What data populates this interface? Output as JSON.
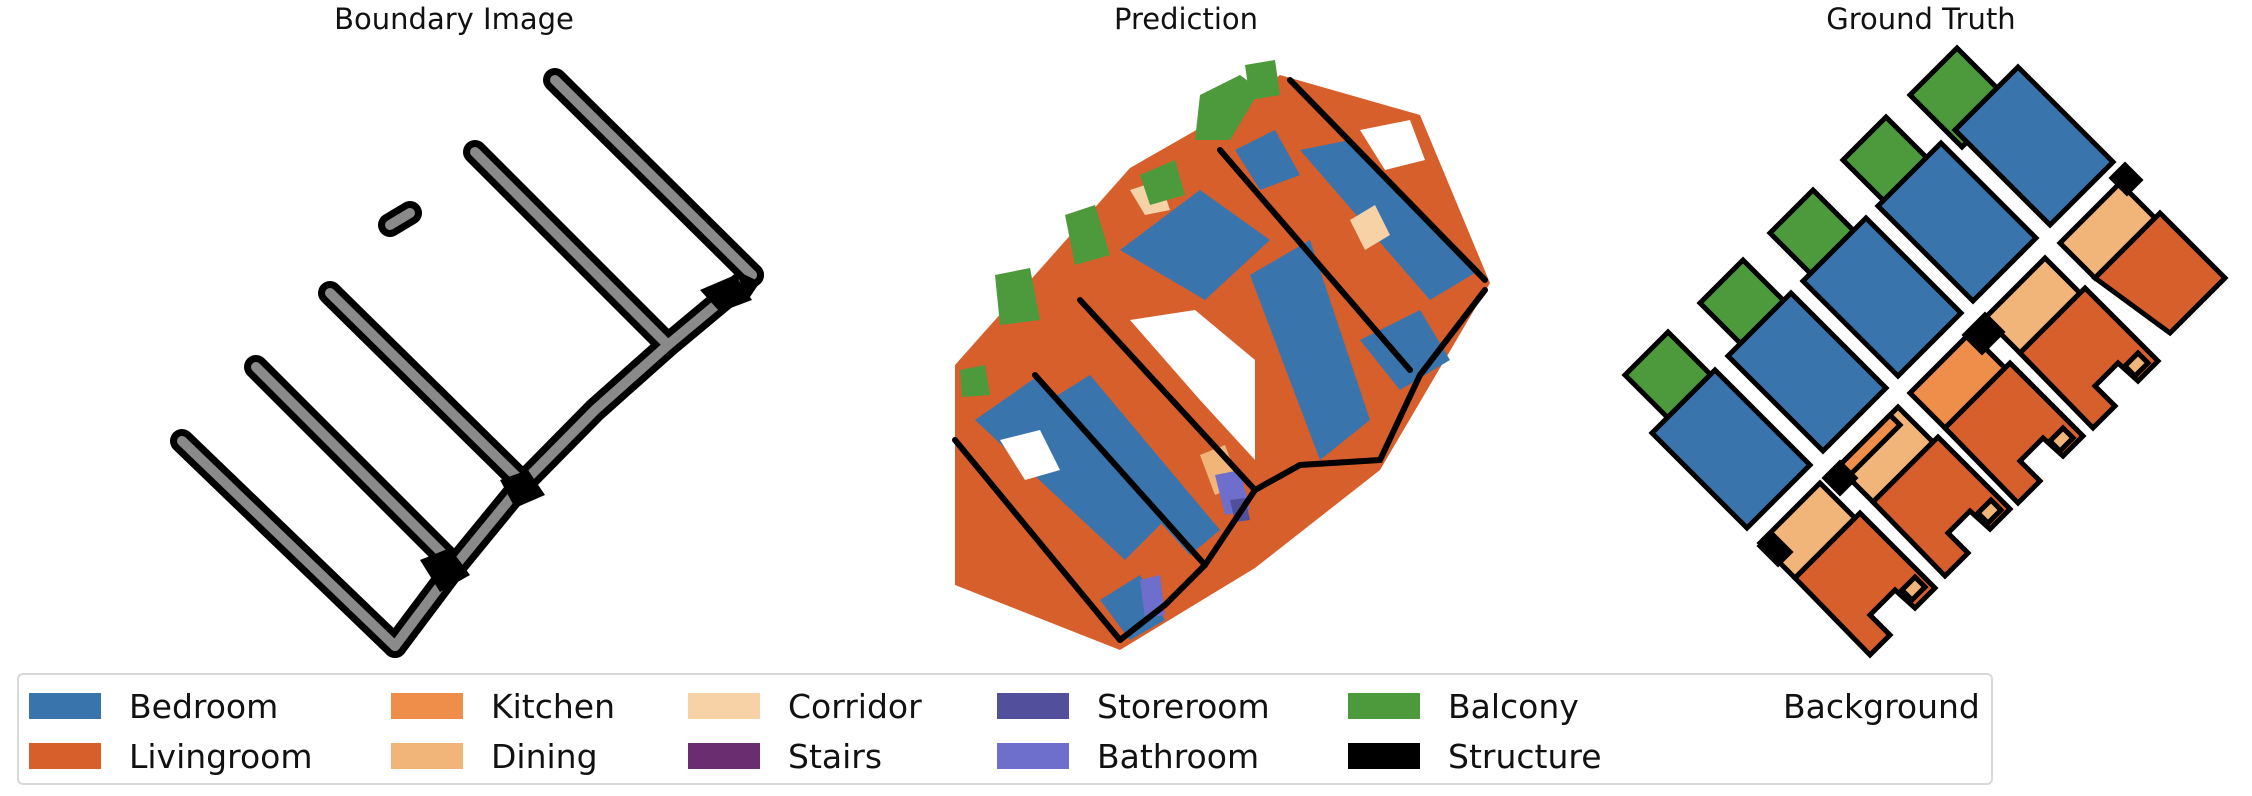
{
  "titles": {
    "boundary": "Boundary Image",
    "prediction": "Prediction",
    "ground_truth": "Ground Truth"
  },
  "legend": [
    {
      "label": "Bedroom",
      "color": "#3a74ad"
    },
    {
      "label": "Livingroom",
      "color": "#d65f2b"
    },
    {
      "label": "Kitchen",
      "color": "#ee8e4a"
    },
    {
      "label": "Dining",
      "color": "#f1b57a"
    },
    {
      "label": "Corridor",
      "color": "#f6d2a6"
    },
    {
      "label": "Stairs",
      "color": "#6a2d70"
    },
    {
      "label": "Storeroom",
      "color": "#52509c"
    },
    {
      "label": "Bathroom",
      "color": "#6e6fcc"
    },
    {
      "label": "Balcony",
      "color": "#4d9a3d"
    },
    {
      "label": "Structure",
      "color": "#000000"
    },
    {
      "label": "Background",
      "color": "#ffffff"
    }
  ]
}
